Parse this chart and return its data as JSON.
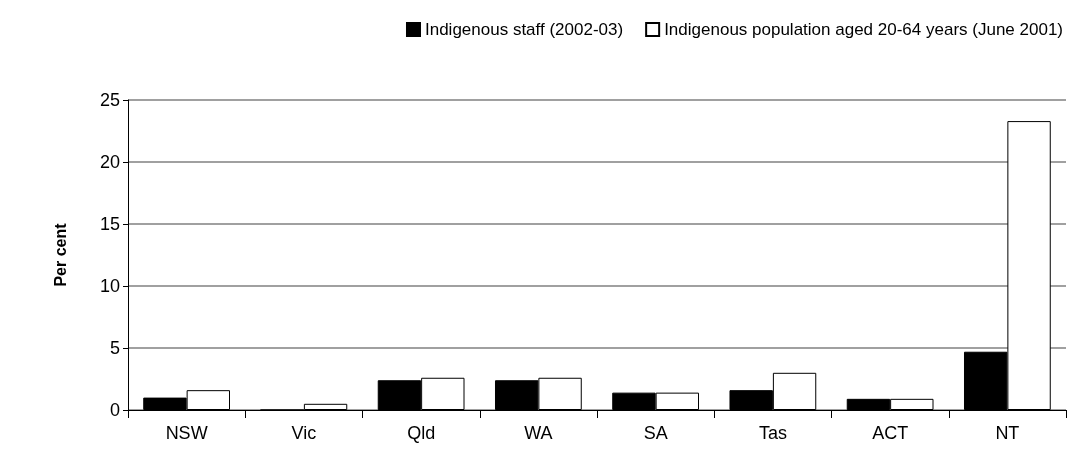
{
  "chart_data": {
    "type": "bar",
    "ylabel": "Per cent",
    "categories": [
      "NSW",
      "Vic",
      "Qld",
      "WA",
      "SA",
      "Tas",
      "ACT",
      "NT"
    ],
    "series": [
      {
        "name": "Indigenous staff (2002-03)",
        "color": "#000000",
        "values": [
          1.0,
          0,
          2.4,
          2.4,
          1.4,
          1.6,
          0.9,
          4.7
        ]
      },
      {
        "name": "Indigenous population aged 20-64 years (June 2001)",
        "color": "#ffffff",
        "values": [
          1.6,
          0.5,
          2.6,
          2.6,
          1.4,
          3.0,
          0.9,
          23.3
        ]
      }
    ],
    "ylim": [
      0,
      25
    ],
    "yticks": [
      0,
      5,
      10,
      15,
      20,
      25
    ],
    "grid": "y",
    "legend": "top right"
  }
}
